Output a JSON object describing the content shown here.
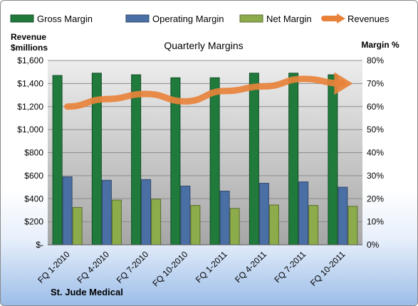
{
  "chart_data": {
    "type": "bar",
    "title": "Quarterly Margins",
    "categories": [
      "FQ 1-2010",
      "FQ 4-2010",
      "FQ 7-2010",
      "FQ 10-2010",
      "FQ 1-2011",
      "FQ 4-2011",
      "FQ 7-2011",
      "FQ 10-2011"
    ],
    "series": [
      {
        "name": "Gross Margin",
        "axis": "right",
        "color": "#1f7a3c",
        "values": [
          73.5,
          74.5,
          73.8,
          72.5,
          72.5,
          74.5,
          74.5,
          73.8
        ]
      },
      {
        "name": "Operating Margin",
        "axis": "right",
        "color": "#4a6fa5",
        "values": [
          29.5,
          28.0,
          28.3,
          25.5,
          23.3,
          26.7,
          27.3,
          25.0
        ]
      },
      {
        "name": "Net Margin",
        "axis": "right",
        "color": "#8cab4a",
        "values": [
          16.2,
          19.4,
          19.8,
          17.1,
          15.8,
          17.3,
          17.1,
          16.7
        ]
      },
      {
        "name": "Revenues",
        "axis": "left",
        "type": "line",
        "color": "#e8823b",
        "values": [
          1200,
          1265,
          1310,
          1245,
          1335,
          1375,
          1440,
          1400
        ]
      }
    ],
    "y_left": {
      "title_line1": "Revenue",
      "title_line2": "$millions",
      "range": [
        0,
        1600
      ],
      "ticks": [
        "$-",
        "$200",
        "$400",
        "$600",
        "$800",
        "$1,000",
        "$1,200",
        "$1,400",
        "$1,600"
      ]
    },
    "y_right": {
      "title": "Margin %",
      "range": [
        0,
        80
      ],
      "ticks": [
        "0%",
        "10%",
        "20%",
        "30%",
        "40%",
        "50%",
        "60%",
        "70%",
        "80%"
      ]
    },
    "legend_position": "top",
    "grid": true,
    "footer": "St. Jude Medical"
  }
}
